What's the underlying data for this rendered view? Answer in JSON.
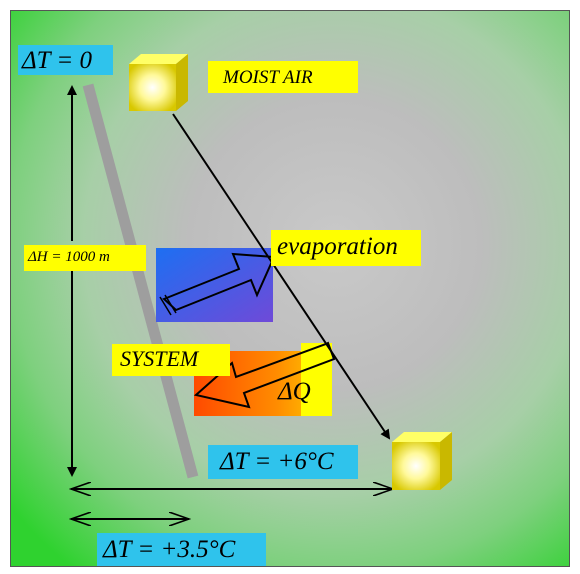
{
  "labels": {
    "dt_zero": "ΔT = 0",
    "moist_air": "MOIST AIR",
    "evaporation": "evaporation",
    "delta_h": "ΔH = 1000 m",
    "system": "SYSTEM",
    "delta_q": "ΔQ",
    "dt_plus6": "ΔT = +6°C",
    "dt_plus35": "ΔT = +3.5°C"
  },
  "colors": {
    "label_cyan": "#2fc3ec",
    "label_yellow": "#ffff00",
    "system_line": "#9e9e9e",
    "arrow": "#000000"
  }
}
